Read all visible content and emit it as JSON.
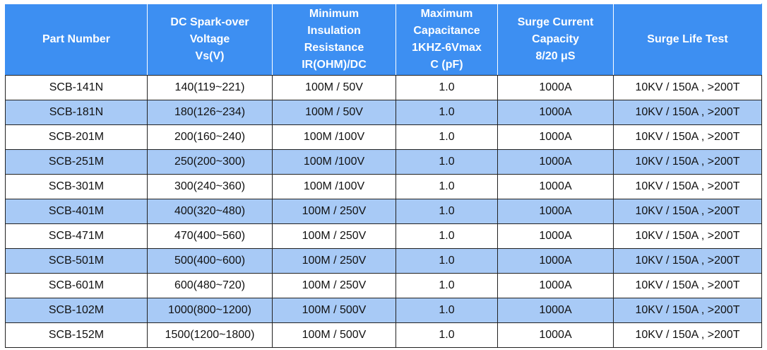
{
  "table": {
    "header": [
      [
        "Part Number"
      ],
      [
        "DC Spark-over",
        "Voltage",
        "Vs(V)"
      ],
      [
        "Minimum",
        "Insulation",
        "Resistance",
        "IR(OHM)/DC"
      ],
      [
        "Maximum",
        "Capacitance",
        "1KHZ-6Vmax",
        "C (pF)"
      ],
      [
        "Surge Current",
        "Capacity",
        "8/20 μS"
      ],
      [
        "Surge Life Test"
      ]
    ],
    "rows": [
      [
        "SCB-141N",
        "140(119~221)",
        "100M / 50V",
        "1.0",
        "1000A",
        "10KV / 150A , >200T"
      ],
      [
        "SCB-181N",
        "180(126~234)",
        "100M / 50V",
        "1.0",
        "1000A",
        "10KV / 150A , >200T"
      ],
      [
        "SCB-201M",
        "200(160~240)",
        "100M /100V",
        "1.0",
        "1000A",
        "10KV / 150A , >200T"
      ],
      [
        "SCB-251M",
        "250(200~300)",
        "100M /100V",
        "1.0",
        "1000A",
        "10KV / 150A , >200T"
      ],
      [
        "SCB-301M",
        "300(240~360)",
        "100M /100V",
        "1.0",
        "1000A",
        "10KV / 150A , >200T"
      ],
      [
        "SCB-401M",
        "400(320~480)",
        "100M / 250V",
        "1.0",
        "1000A",
        "10KV / 150A , >200T"
      ],
      [
        "SCB-471M",
        "470(400~560)",
        "100M / 250V",
        "1.0",
        "1000A",
        "10KV / 150A , >200T"
      ],
      [
        "SCB-501M",
        "500(400~600)",
        "100M / 250V",
        "1.0",
        "1000A",
        "10KV / 150A , >200T"
      ],
      [
        "SCB-601M",
        "600(480~720)",
        "100M / 250V",
        "1.0",
        "1000A",
        "10KV / 150A , >200T"
      ],
      [
        "SCB-102M",
        "1000(800~1200)",
        "100M / 500V",
        "1.0",
        "1000A",
        "10KV / 150A , >200T"
      ],
      [
        "SCB-152M",
        "1500(1200~1800)",
        "100M / 500V",
        "1.0",
        "1000A",
        "10KV / 150A , >200T"
      ]
    ]
  }
}
